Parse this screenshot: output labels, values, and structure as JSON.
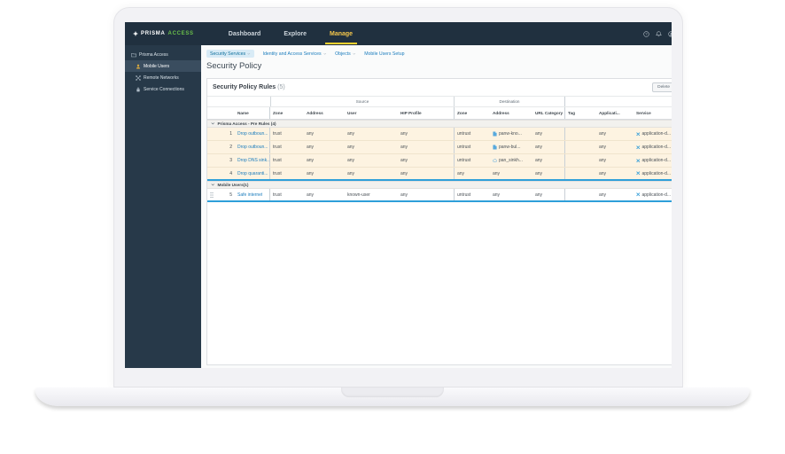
{
  "colors": {
    "nav-bg": "#20303f",
    "brand-green": "#6abf4a",
    "accent-yellow": "#fdd12f",
    "link-blue": "#1a7cbd",
    "row-highlight": "#fdf3e1",
    "separator-blue": "#2f9fd9"
  },
  "nav": {
    "logo": {
      "prisma": "PRISMA",
      "access": "ACCESS"
    },
    "tabs": [
      {
        "label": "Dashboard",
        "active": false
      },
      {
        "label": "Explore",
        "active": false
      },
      {
        "label": "Manage",
        "active": true
      }
    ],
    "icons": [
      {
        "name": "help-icon"
      },
      {
        "name": "bell-icon"
      },
      {
        "name": "avatar-icon"
      }
    ]
  },
  "sidebar": {
    "items": [
      {
        "label": "Prisma Access",
        "icon": "folder-icon",
        "selected": false,
        "child": false
      },
      {
        "label": "Mobile Users",
        "icon": "mobile-users-icon",
        "selected": true,
        "child": true
      },
      {
        "label": "Remote Networks",
        "icon": "remote-networks-icon",
        "selected": false,
        "child": true
      },
      {
        "label": "Service Connections",
        "icon": "service-connections-icon",
        "selected": false,
        "child": true
      }
    ]
  },
  "breadcrumb": [
    {
      "label": "Security Services",
      "caret": true,
      "selected": true
    },
    {
      "label": "Identity and Access Services",
      "caret": true,
      "selected": false
    },
    {
      "label": "Objects",
      "caret": true,
      "selected": false
    },
    {
      "label": "Mobile Users Setup",
      "caret": false,
      "selected": false
    }
  ],
  "page": {
    "title": "Security Policy"
  },
  "panel": {
    "title": "Security Policy Rules",
    "count": "(5)",
    "action_button": "Delete",
    "table": {
      "group_headers": {
        "source": "Source",
        "destination": "Destination"
      },
      "columns": [
        "Name",
        "Zone",
        "Address",
        "User",
        "HIP Profile",
        "Zone",
        "Address",
        "URL Category",
        "Tag",
        "Applicati...",
        "Service"
      ],
      "groups": [
        {
          "label": "Prisma Access - Pre Rules (4)",
          "rows": [
            {
              "num": "1",
              "name": "Drop outboun...",
              "drag_handle": false,
              "highlighted": true,
              "source": {
                "zone": "trust",
                "address": "any",
                "user": "any",
                "hip_profile": "any"
              },
              "destination": {
                "zone": "untrust",
                "address": "panw-kno...",
                "address_icon": "address-object-icon",
                "url_category": "any"
              },
              "tag": "",
              "application": "any",
              "service": "application-d..."
            },
            {
              "num": "2",
              "name": "Drop outboun...",
              "drag_handle": false,
              "highlighted": true,
              "source": {
                "zone": "trust",
                "address": "any",
                "user": "any",
                "hip_profile": "any"
              },
              "destination": {
                "zone": "untrust",
                "address": "panw-bul...",
                "address_icon": "address-object-icon",
                "url_category": "any"
              },
              "tag": "",
              "application": "any",
              "service": "application-d..."
            },
            {
              "num": "3",
              "name": "Drop DNS sink...",
              "drag_handle": false,
              "highlighted": true,
              "source": {
                "zone": "trust",
                "address": "any",
                "user": "any",
                "hip_profile": "any"
              },
              "destination": {
                "zone": "untrust",
                "address": "pan_sinkh...",
                "address_icon": "sinkhole-icon",
                "url_category": "any"
              },
              "tag": "",
              "application": "any",
              "service": "application-d..."
            },
            {
              "num": "4",
              "name": "Drop quaranti...",
              "drag_handle": false,
              "highlighted": true,
              "source": {
                "zone": "trust",
                "address": "any",
                "user": "any",
                "hip_profile": "any"
              },
              "destination": {
                "zone": "any",
                "address": "any",
                "address_icon": "",
                "url_category": "any"
              },
              "tag": "",
              "application": "any",
              "service": "application-d..."
            }
          ]
        },
        {
          "label": "Mobile Users(1)",
          "rows": [
            {
              "num": "5",
              "name": "Safe internet",
              "drag_handle": true,
              "highlighted": false,
              "source": {
                "zone": "trust",
                "address": "any",
                "user": "known-user",
                "hip_profile": "any"
              },
              "destination": {
                "zone": "untrust",
                "address": "any",
                "address_icon": "",
                "url_category": "any"
              },
              "tag": "",
              "application": "any",
              "service": "application-d..."
            }
          ]
        }
      ]
    }
  }
}
